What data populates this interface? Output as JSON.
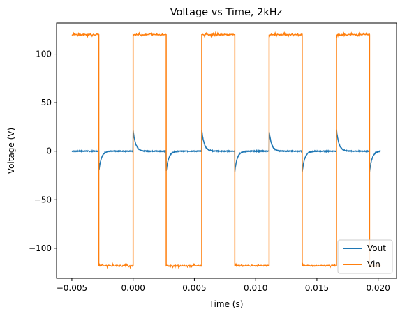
{
  "chart_data": {
    "type": "line",
    "title": "Voltage vs Time, 2kHz",
    "xlabel": "Time (s)",
    "ylabel": "Voltage (V)",
    "xlim": [
      -0.00625,
      0.0215
    ],
    "ylim": [
      -131,
      132
    ],
    "xticks": [
      -0.005,
      0.0,
      0.005,
      0.01,
      0.015,
      0.02
    ],
    "xtick_labels": [
      "−0.005",
      "0.000",
      "0.005",
      "0.010",
      "0.015",
      "0.020"
    ],
    "yticks": [
      -100,
      -50,
      0,
      50,
      100
    ],
    "ytick_labels": [
      "−100",
      "−50",
      "0",
      "50",
      "100"
    ],
    "grid": false,
    "legend": {
      "position": "lower-right",
      "entries": [
        "Vout",
        "Vin"
      ]
    },
    "series": [
      {
        "name": "Vout",
        "color": "#1f77b4",
        "description": "High-pass response: spikes at each square-wave edge decaying to 0",
        "x_start": -0.005,
        "x_end": 0.0202,
        "baseline": 0,
        "edges": [
          {
            "x": -0.0028,
            "peak": -21
          },
          {
            "x": 0.0,
            "peak": 22
          },
          {
            "x": 0.0027,
            "peak": -21
          },
          {
            "x": 0.0056,
            "peak": 22
          },
          {
            "x": 0.0083,
            "peak": -21
          },
          {
            "x": 0.0111,
            "peak": 21
          },
          {
            "x": 0.0138,
            "peak": -22
          },
          {
            "x": 0.0166,
            "peak": 22
          },
          {
            "x": 0.0193,
            "peak": -21
          }
        ],
        "decay_time_constant": 0.0002
      },
      {
        "name": "Vin",
        "color": "#ff7f0e",
        "description": "Square wave ±~119 V",
        "x_start": -0.005,
        "x_end": 0.0202,
        "high": 120,
        "low": -118,
        "edges": [
          -0.0028,
          0.0,
          0.0027,
          0.0056,
          0.0083,
          0.0111,
          0.0138,
          0.0166,
          0.0193
        ],
        "start_level": "high"
      }
    ]
  }
}
